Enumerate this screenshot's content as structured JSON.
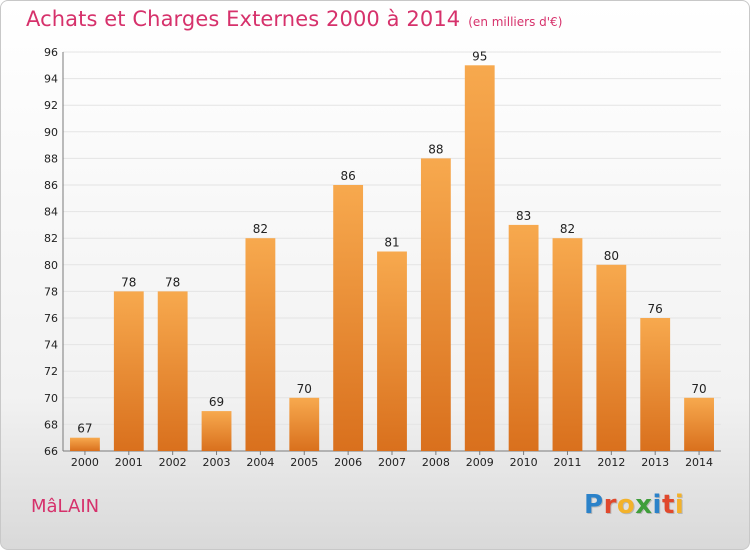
{
  "chart_data": {
    "type": "bar",
    "title": "Achats et Charges Externes 2000 à 2014",
    "subtitle": "(en milliers d'€)",
    "categories": [
      "2000",
      "2001",
      "2002",
      "2003",
      "2004",
      "2005",
      "2006",
      "2007",
      "2008",
      "2009",
      "2010",
      "2011",
      "2012",
      "2013",
      "2014"
    ],
    "values": [
      67,
      78,
      78,
      69,
      82,
      70,
      86,
      81,
      88,
      95,
      83,
      82,
      80,
      76,
      70
    ],
    "ylim": [
      66,
      96
    ],
    "yticks": [
      66,
      68,
      70,
      72,
      74,
      76,
      78,
      80,
      82,
      84,
      86,
      88,
      90,
      92,
      94,
      96
    ],
    "grid": true,
    "colors": {
      "bar_light": "#f7a94e",
      "bar_dark": "#d9701d",
      "grid": "#e4e4e4",
      "axis": "#7a7a7a"
    }
  },
  "commune": "MâLAIN",
  "logo": {
    "letters": [
      "P",
      "r",
      "o",
      "x",
      "i",
      "t",
      "i"
    ],
    "colors": [
      "#2b82c9",
      "#e0492d",
      "#f3b22a",
      "#3f9e3a",
      "#2b82c9",
      "#e0492d",
      "#f3b22a"
    ]
  }
}
